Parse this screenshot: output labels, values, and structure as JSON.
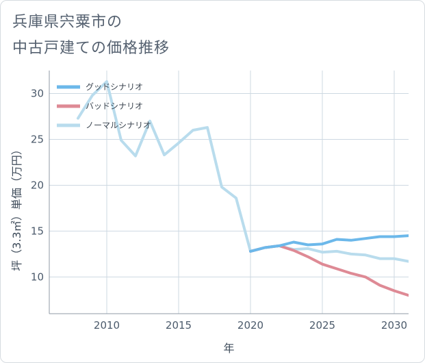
{
  "title": {
    "line1": "兵庫県宍粟市の",
    "line2": "中古戸建ての価格推移"
  },
  "colors": {
    "good": "#6cb8ea",
    "bad": "#de8a95",
    "normal": "#b9dced",
    "grid": "#cdd8e2",
    "axis": "#8f9aa6"
  },
  "chart_data": {
    "type": "line",
    "title": "兵庫県宍粟市の中古戸建ての価格推移",
    "xlabel": "年",
    "ylabel": "坪（3.3㎡）単価（万円）",
    "xlim": [
      2006,
      2031
    ],
    "ylim": [
      6,
      32.5
    ],
    "xticks": [
      2010,
      2015,
      2020,
      2025,
      2030
    ],
    "yticks": [
      10,
      15,
      20,
      25,
      30
    ],
    "legend_position": "top-left",
    "series": [
      {
        "key": "good",
        "name": "グッドシナリオ",
        "x": [
          2020,
          2021,
          2022,
          2023,
          2024,
          2025,
          2026,
          2027,
          2028,
          2029,
          2030,
          2031
        ],
        "values": [
          12.8,
          13.2,
          13.4,
          13.8,
          13.5,
          13.6,
          14.1,
          14.0,
          14.2,
          14.4,
          14.4,
          14.5
        ]
      },
      {
        "key": "bad",
        "name": "バッドシナリオ",
        "x": [
          2020,
          2021,
          2022,
          2023,
          2024,
          2025,
          2026,
          2027,
          2028,
          2029,
          2030,
          2031
        ],
        "values": [
          12.8,
          13.2,
          13.4,
          12.9,
          12.2,
          11.4,
          10.9,
          10.4,
          10.0,
          9.1,
          8.5,
          8.0
        ]
      },
      {
        "key": "normal",
        "name": "ノーマルシナリオ",
        "x": [
          2008,
          2009,
          2010,
          2011,
          2012,
          2013,
          2014,
          2015,
          2016,
          2017,
          2018,
          2019,
          2020,
          2021,
          2022,
          2023,
          2024,
          2025,
          2026,
          2027,
          2028,
          2029,
          2030,
          2031
        ],
        "values": [
          27.3,
          29.8,
          31.3,
          24.9,
          23.2,
          27.0,
          23.3,
          24.6,
          26.0,
          26.3,
          19.8,
          18.6,
          12.8,
          13.2,
          13.4,
          13.0,
          13.1,
          12.7,
          12.8,
          12.5,
          12.4,
          12.0,
          12.0,
          11.7
        ]
      }
    ]
  }
}
